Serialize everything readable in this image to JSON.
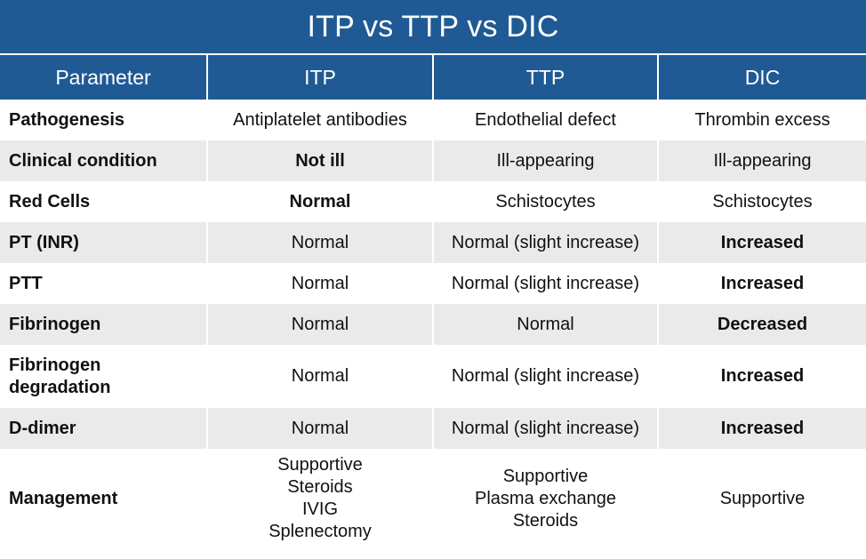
{
  "title": "ITP vs TTP vs DIC",
  "headers": [
    "Parameter",
    "ITP",
    "TTP",
    "DIC"
  ],
  "colors": {
    "header_bg": "#1f5a94",
    "alt_row": "#eaeaea"
  },
  "rows": [
    {
      "parameter": "Pathogenesis",
      "itp": "Antiplatelet antibodies",
      "ttp": "Endothelial defect",
      "dic": "Thrombin excess"
    },
    {
      "parameter": "Clinical condition",
      "itp": "Not ill",
      "ttp": "Ill-appearing",
      "dic": "Ill-appearing"
    },
    {
      "parameter": "Red Cells",
      "itp": "Normal",
      "ttp": "Schistocytes",
      "dic": "Schistocytes"
    },
    {
      "parameter": "PT (INR)",
      "itp": "Normal",
      "ttp": "Normal (slight increase)",
      "dic": "Increased"
    },
    {
      "parameter": "PTT",
      "itp": "Normal",
      "ttp": "Normal (slight increase)",
      "dic": "Increased"
    },
    {
      "parameter": "Fibrinogen",
      "itp": "Normal",
      "ttp": "Normal",
      "dic": "Decreased"
    },
    {
      "parameter_lines": [
        "Fibrinogen",
        "degradation"
      ],
      "itp": "Normal",
      "ttp": "Normal (slight increase)",
      "dic": "Increased"
    },
    {
      "parameter": "D-dimer",
      "itp": "Normal",
      "ttp": "Normal (slight increase)",
      "dic": "Increased"
    },
    {
      "parameter": "Management",
      "itp": [
        "Supportive",
        "Steroids",
        "IVIG",
        "Splenectomy"
      ],
      "ttp": [
        "Supportive",
        "Plasma exchange",
        "Steroids"
      ],
      "dic": "Supportive"
    }
  ]
}
